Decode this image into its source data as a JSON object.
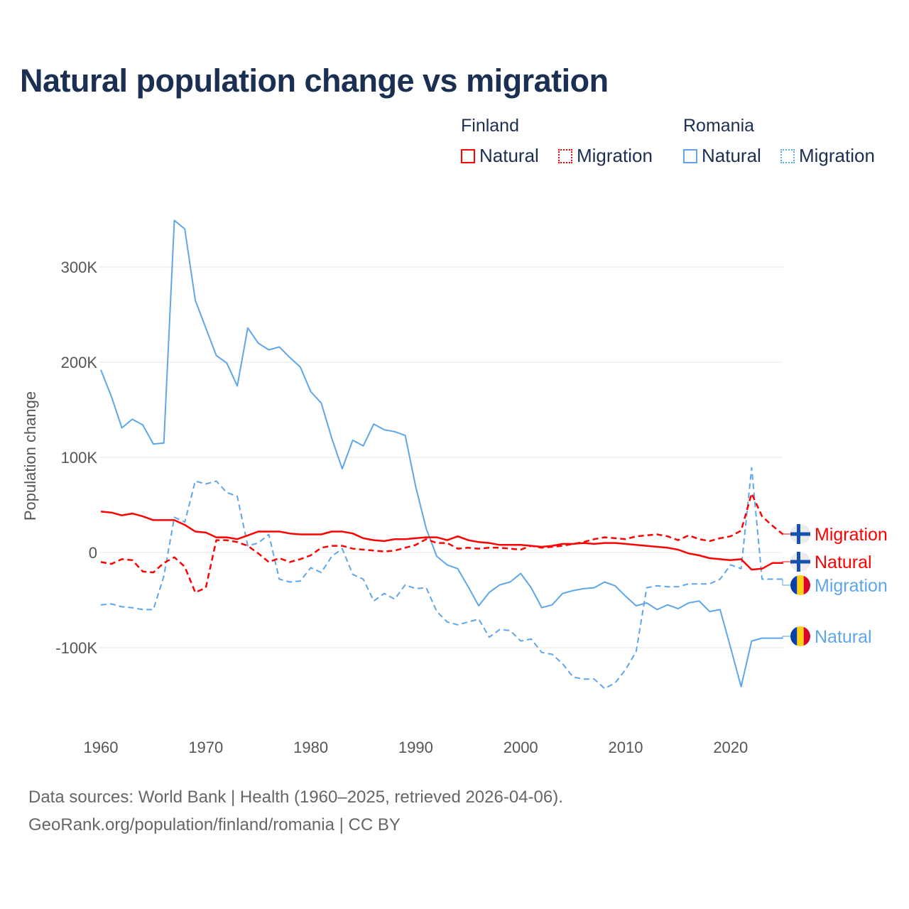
{
  "title": "Natural population change vs migration",
  "legend": {
    "groups": [
      {
        "name": "Finland",
        "items": [
          "Natural",
          "Migration"
        ],
        "color": "#ff0000"
      },
      {
        "name": "Romania",
        "items": [
          "Natural",
          "Migration"
        ],
        "color": "#5ea6ea"
      }
    ]
  },
  "footer": {
    "line1": "Data sources: World Bank | Health (1960–2025, retrieved 2026-04-06).",
    "line2": "GeoRank.org/population/finland/romania | CC BY"
  },
  "chart_data": {
    "type": "line",
    "title": "Natural population change vs migration",
    "xlabel": "",
    "ylabel": "Population change",
    "xlim": [
      1960,
      2025
    ],
    "ylim": [
      -160000,
      370000
    ],
    "x_ticks": [
      1960,
      1970,
      1980,
      1990,
      2000,
      2010,
      2020
    ],
    "x_tick_labels": [
      "1960",
      "1970",
      "1980",
      "1990",
      "2000",
      "2010",
      "2020"
    ],
    "y_ticks": [
      -100000,
      0,
      100000,
      200000,
      300000
    ],
    "y_tick_labels": [
      "-100K",
      "0",
      "100K",
      "200K",
      "300K"
    ],
    "grid": true,
    "legend_position": "top-right",
    "start_year": 1960,
    "series": [
      {
        "name": "Romania Natural",
        "country": "Romania",
        "label": "Natural",
        "color": "#5ea6ea",
        "dash": false,
        "values_k": [
          192,
          164,
          131,
          140,
          134,
          114,
          115,
          349,
          340,
          265,
          236,
          207,
          199,
          175,
          236,
          220,
          213,
          216,
          205,
          195,
          169,
          157,
          120,
          88,
          118,
          112,
          135,
          129,
          127,
          123,
          69,
          25,
          -4,
          -13,
          -17,
          -36,
          -56,
          -42,
          -34,
          -31,
          -22,
          -37,
          -58,
          -55,
          -43,
          -40,
          -38,
          -37,
          -31,
          -35,
          -46,
          -56,
          -53,
          -60,
          -55,
          -59,
          -53,
          -51,
          -62,
          -60,
          -100,
          -141,
          -93,
          -90,
          -90,
          -90
        ]
      },
      {
        "name": "Romania Migration",
        "country": "Romania",
        "label": "Migration",
        "color": "#5ea6ea",
        "dash": true,
        "values_k": [
          -55,
          -54,
          -57,
          -58,
          -60,
          -60,
          -25,
          37,
          32,
          75,
          72,
          75,
          63,
          59,
          7,
          10,
          19,
          -28,
          -31,
          -30,
          -16,
          -21,
          -4,
          4,
          -23,
          -28,
          -51,
          -43,
          -49,
          -34,
          -38,
          -37,
          -62,
          -73,
          -76,
          -73,
          -70,
          -89,
          -81,
          -82,
          -93,
          -91,
          -105,
          -107,
          -117,
          -131,
          -133,
          -133,
          -143,
          -137,
          -123,
          -104,
          -37,
          -35,
          -36,
          -36,
          -33,
          -33,
          -33,
          -28,
          -13,
          -17,
          89,
          -28,
          -28,
          -28
        ]
      },
      {
        "name": "Finland Natural",
        "country": "Finland",
        "label": "Natural",
        "color": "#ff0000",
        "dash": false,
        "values_k": [
          43,
          42,
          39,
          41,
          38,
          34,
          34,
          34,
          29,
          22,
          21,
          16,
          16,
          14,
          18,
          22,
          22,
          22,
          20,
          19,
          19,
          19,
          22,
          22,
          20,
          15,
          13,
          12,
          14,
          14,
          15,
          16,
          16,
          13,
          17,
          13,
          11,
          10,
          8,
          8,
          8,
          7,
          6,
          7,
          9,
          9,
          10,
          9,
          10,
          10,
          9,
          8,
          7,
          6,
          5,
          3,
          -1,
          -3,
          -6,
          -7,
          -8,
          -7,
          -18,
          -17,
          -11,
          -11
        ]
      },
      {
        "name": "Finland Migration",
        "country": "Finland",
        "label": "Migration",
        "color": "#ff0000",
        "dash": true,
        "values_k": [
          -10,
          -12,
          -7,
          -8,
          -20,
          -21,
          -11,
          -5,
          -15,
          -42,
          -37,
          13,
          13,
          11,
          7,
          -1,
          -10,
          -6,
          -10,
          -7,
          -3,
          5,
          7,
          7,
          4,
          3,
          2,
          1,
          2,
          5,
          8,
          14,
          10,
          10,
          4,
          5,
          4,
          5,
          5,
          4,
          3,
          7,
          5,
          6,
          7,
          9,
          11,
          14,
          16,
          15,
          14,
          17,
          18,
          19,
          17,
          13,
          18,
          14,
          12,
          15,
          17,
          23,
          62,
          38,
          28,
          19
        ]
      }
    ],
    "end_labels": [
      {
        "text": "Migration",
        "country": "Finland"
      },
      {
        "text": "Natural",
        "country": "Finland"
      },
      {
        "text": "Migration",
        "country": "Romania"
      },
      {
        "text": "Natural",
        "country": "Romania"
      }
    ]
  }
}
